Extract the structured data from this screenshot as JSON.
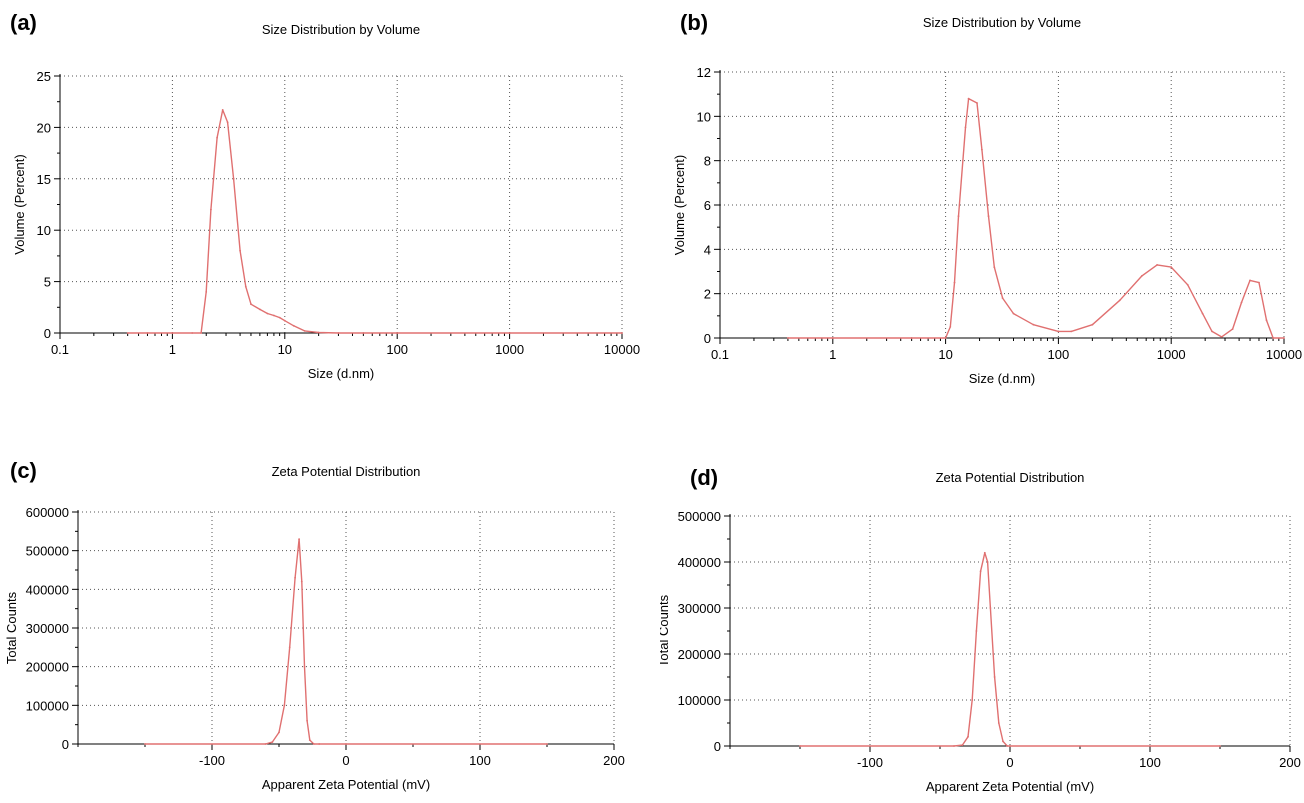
{
  "colors": {
    "curve": "#E07070",
    "axis": "#000000",
    "grid": "#555555"
  },
  "chart_data": [
    {
      "panel": "(a)",
      "type": "line",
      "title": "Size Distribution by Volume",
      "xlabel": "Size (d.nm)",
      "ylabel": "Volume (Percent)",
      "xscale": "log",
      "xlim": [
        0.1,
        10000
      ],
      "ylim": [
        0,
        25
      ],
      "xticks": [
        0.1,
        1,
        10,
        100,
        1000,
        10000
      ],
      "xtick_labels": [
        "0.1",
        "1",
        "10",
        "100",
        "1000",
        "10000"
      ],
      "yticks": [
        0,
        5,
        10,
        15,
        20,
        25
      ],
      "ytick_labels": [
        "0",
        "5",
        "10",
        "15",
        "20",
        "25"
      ],
      "grid": true,
      "series": [
        {
          "x": [
            0.4,
            0.6,
            1.0,
            1.5,
            1.8,
            2.0,
            2.2,
            2.5,
            2.8,
            3.1,
            3.5,
            4.0,
            4.5,
            5.0,
            6.0,
            7.0,
            8.0,
            9.0,
            10.0,
            12.0,
            15.0,
            20.0,
            30.0,
            50.0,
            100.0,
            1000.0,
            10000.0
          ],
          "y": [
            0,
            0,
            0,
            0,
            0,
            4,
            12,
            19,
            21.7,
            20.5,
            15,
            8,
            4.5,
            2.8,
            2.3,
            1.9,
            1.7,
            1.5,
            1.2,
            0.7,
            0.2,
            0.05,
            0,
            0,
            0,
            0,
            0
          ]
        }
      ]
    },
    {
      "panel": "(b)",
      "type": "line",
      "title": "Size Distribution by Volume",
      "xlabel": "Size (d.nm)",
      "ylabel": "Volume (Percent)",
      "xscale": "log",
      "xlim": [
        0.1,
        10000
      ],
      "ylim": [
        0,
        12
      ],
      "xticks": [
        0.1,
        1,
        10,
        100,
        1000,
        10000
      ],
      "xtick_labels": [
        "0.1",
        "1",
        "10",
        "100",
        "1000",
        "10000"
      ],
      "yticks": [
        0,
        2,
        4,
        6,
        8,
        10,
        12
      ],
      "ytick_labels": [
        "0",
        "2",
        "4",
        "6",
        "8",
        "10",
        "12"
      ],
      "grid": true,
      "series": [
        {
          "x": [
            0.4,
            1,
            5,
            10,
            11,
            12,
            13,
            15,
            16,
            19,
            21,
            24,
            27,
            32,
            40,
            60,
            100,
            130,
            200,
            350,
            550,
            750,
            1000,
            1400,
            1900,
            2300,
            2800,
            3500,
            4200,
            5000,
            6000,
            7000,
            8000,
            10000
          ],
          "y": [
            0,
            0,
            0,
            0,
            0.5,
            2.5,
            5.5,
            9.5,
            10.8,
            10.6,
            8.5,
            5.5,
            3.2,
            1.8,
            1.1,
            0.6,
            0.3,
            0.3,
            0.6,
            1.7,
            2.8,
            3.3,
            3.2,
            2.4,
            1.1,
            0.3,
            0.05,
            0.4,
            1.6,
            2.6,
            2.5,
            0.8,
            0,
            0
          ]
        }
      ]
    },
    {
      "panel": "(c)",
      "type": "line",
      "title": "Zeta Potential Distribution",
      "xlabel": "Apparent Zeta Potential (mV)",
      "ylabel": "Total Counts",
      "xscale": "linear",
      "xlim": [
        -200,
        200
      ],
      "ylim": [
        0,
        600000
      ],
      "xticks": [
        -100,
        0,
        100,
        200
      ],
      "xtick_labels": [
        "-100",
        "0",
        "100",
        "200"
      ],
      "yticks": [
        0,
        100000,
        200000,
        300000,
        400000,
        500000,
        600000
      ],
      "ytick_labels": [
        "0",
        "100000",
        "200000",
        "300000",
        "400000",
        "500000",
        "600000"
      ],
      "grid": true,
      "series": [
        {
          "x": [
            -150,
            -60,
            -55,
            -50,
            -46,
            -42,
            -38,
            -35,
            -33,
            -31,
            -29,
            -27,
            -24,
            -20,
            0,
            150
          ],
          "y": [
            0,
            0,
            5000,
            30000,
            100000,
            250000,
            430000,
            530000,
            420000,
            200000,
            60000,
            10000,
            0,
            0,
            0,
            0
          ]
        }
      ]
    },
    {
      "panel": "(d)",
      "type": "line",
      "title": "Zeta Potential Distribution",
      "xlabel": "Apparent Zeta Potential (mV)",
      "ylabel": "Total Counts",
      "xscale": "linear",
      "xlim": [
        -200,
        200
      ],
      "ylim": [
        0,
        500000
      ],
      "xticks": [
        -100,
        0,
        100,
        200
      ],
      "xtick_labels": [
        "-100",
        "0",
        "100",
        "200"
      ],
      "yticks": [
        0,
        100000,
        200000,
        300000,
        400000,
        500000
      ],
      "ytick_labels": [
        "0",
        "100000",
        "200000",
        "300000",
        "400000",
        "500000"
      ],
      "grid": true,
      "series": [
        {
          "x": [
            -150,
            -40,
            -34,
            -30,
            -27,
            -24,
            -21,
            -18,
            -16,
            -14,
            -11,
            -8,
            -5,
            -2,
            0,
            150
          ],
          "y": [
            0,
            0,
            2000,
            20000,
            100000,
            250000,
            380000,
            420000,
            400000,
            300000,
            150000,
            50000,
            10000,
            0,
            0,
            0
          ]
        }
      ]
    }
  ]
}
